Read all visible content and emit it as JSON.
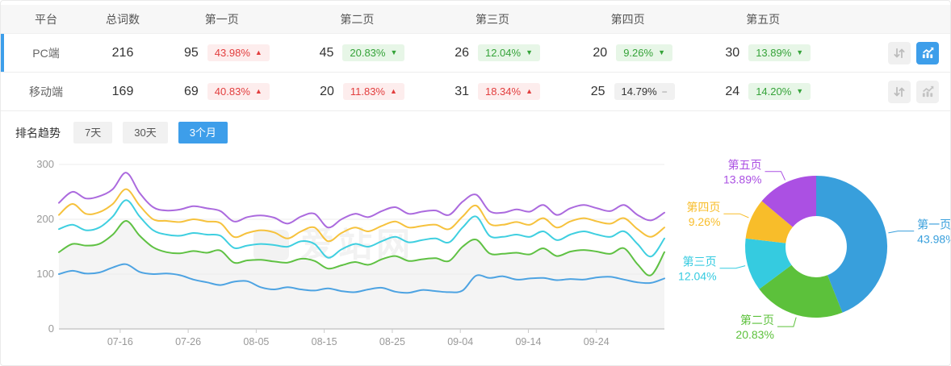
{
  "colors": {
    "accent_blue": "#3d9eea",
    "badge_red_text": "#e23e3e",
    "badge_red_bg": "#fdeded",
    "badge_green_text": "#35a339",
    "badge_green_bg": "#e7f6e7",
    "badge_gray_bg": "#f1f1f1",
    "grid_line": "#ececec",
    "axis_line": "#c9c9c9",
    "tick_text": "#999999",
    "area_fill": "#f4f4f4"
  },
  "table": {
    "headers": [
      "平台",
      "总词数",
      "第一页",
      "第二页",
      "第三页",
      "第四页",
      "第五页"
    ],
    "rows": [
      {
        "platform": "PC端",
        "total": "216",
        "selected": true,
        "pages": [
          {
            "count": "95",
            "pct": "43.98%",
            "dir": "up",
            "tone": "red"
          },
          {
            "count": "45",
            "pct": "20.83%",
            "dir": "down",
            "tone": "green"
          },
          {
            "count": "26",
            "pct": "12.04%",
            "dir": "down",
            "tone": "green"
          },
          {
            "count": "20",
            "pct": "9.26%",
            "dir": "down",
            "tone": "green"
          },
          {
            "count": "30",
            "pct": "13.89%",
            "dir": "down",
            "tone": "green"
          }
        ],
        "sort_active": false,
        "chart_active": true
      },
      {
        "platform": "移动端",
        "total": "169",
        "selected": false,
        "pages": [
          {
            "count": "69",
            "pct": "40.83%",
            "dir": "up",
            "tone": "red"
          },
          {
            "count": "20",
            "pct": "11.83%",
            "dir": "up",
            "tone": "red"
          },
          {
            "count": "31",
            "pct": "18.34%",
            "dir": "up",
            "tone": "red"
          },
          {
            "count": "25",
            "pct": "14.79%",
            "dir": "flat",
            "tone": "gray"
          },
          {
            "count": "24",
            "pct": "14.20%",
            "dir": "down",
            "tone": "green"
          }
        ],
        "sort_active": false,
        "chart_active": false
      }
    ]
  },
  "trend": {
    "title": "排名趋势",
    "tabs": [
      {
        "label": "7天",
        "active": false
      },
      {
        "label": "30天",
        "active": false
      },
      {
        "label": "3个月",
        "active": true
      }
    ]
  },
  "watermark": "爱站网",
  "chart_data": [
    {
      "type": "line",
      "title": "排名趋势 3个月",
      "xlabel": "",
      "ylabel": "",
      "ylim": [
        0,
        300
      ],
      "y_ticks": [
        0,
        100,
        200,
        300
      ],
      "x_ticks": [
        "07-16",
        "07-26",
        "08-05",
        "08-15",
        "08-25",
        "09-04",
        "09-14",
        "09-24"
      ],
      "x_tick_days": [
        9,
        19,
        29,
        39,
        49,
        59,
        69,
        79
      ],
      "total_days": 89,
      "grid": true,
      "legend_position": "none",
      "series": [
        {
          "name": "第一页",
          "color": "#4da3e2",
          "area": false,
          "values": [
            100,
            106,
            101,
            103,
            112,
            118,
            104,
            100,
            101,
            98,
            90,
            85,
            80,
            86,
            87,
            76,
            72,
            76,
            72,
            70,
            74,
            69,
            67,
            72,
            75,
            68,
            66,
            71,
            69,
            67,
            70,
            97,
            93,
            96,
            90,
            92,
            93,
            89,
            91,
            90,
            94,
            95,
            90,
            85,
            84,
            92
          ]
        },
        {
          "name": "第二页",
          "color": "#5fc143",
          "area": true,
          "values": [
            140,
            155,
            152,
            155,
            172,
            197,
            170,
            149,
            140,
            138,
            142,
            139,
            143,
            121,
            125,
            126,
            123,
            121,
            128,
            124,
            110,
            116,
            122,
            117,
            127,
            133,
            124,
            127,
            129,
            124,
            150,
            163,
            138,
            137,
            139,
            136,
            147,
            133,
            141,
            144,
            141,
            137,
            147,
            118,
            98,
            140
          ]
        },
        {
          "name": "第三页",
          "color": "#3fcfe0",
          "area": false,
          "values": [
            182,
            190,
            180,
            185,
            205,
            235,
            205,
            180,
            172,
            170,
            175,
            172,
            170,
            148,
            152,
            155,
            153,
            150,
            160,
            155,
            130,
            145,
            155,
            150,
            160,
            168,
            158,
            162,
            165,
            158,
            185,
            205,
            170,
            168,
            172,
            168,
            178,
            162,
            172,
            178,
            172,
            168,
            178,
            155,
            132,
            165
          ]
        },
        {
          "name": "第四页",
          "color": "#f6c23d",
          "area": false,
          "values": [
            208,
            228,
            210,
            213,
            228,
            255,
            225,
            200,
            197,
            195,
            200,
            196,
            193,
            168,
            175,
            180,
            176,
            165,
            178,
            185,
            160,
            175,
            185,
            178,
            188,
            196,
            185,
            188,
            190,
            182,
            205,
            225,
            192,
            190,
            195,
            190,
            202,
            185,
            196,
            202,
            196,
            192,
            202,
            182,
            168,
            185
          ]
        },
        {
          "name": "第五页",
          "color": "#ab6ade",
          "area": false,
          "values": [
            230,
            250,
            238,
            242,
            255,
            285,
            248,
            222,
            216,
            218,
            224,
            220,
            215,
            196,
            204,
            207,
            203,
            192,
            205,
            210,
            185,
            200,
            210,
            204,
            215,
            222,
            210,
            214,
            216,
            208,
            232,
            245,
            215,
            212,
            218,
            214,
            226,
            208,
            220,
            226,
            220,
            215,
            226,
            208,
            198,
            212
          ]
        }
      ]
    },
    {
      "type": "pie",
      "donut": true,
      "slices": [
        {
          "label": "第一页",
          "value": 43.98,
          "display": "43.98%",
          "color": "#389fdc"
        },
        {
          "label": "第二页",
          "value": 20.83,
          "display": "20.83%",
          "color": "#5cc13b"
        },
        {
          "label": "第三页",
          "value": 12.04,
          "display": "12.04%",
          "color": "#35cbe0"
        },
        {
          "label": "第四页",
          "value": 9.26,
          "display": "9.26%",
          "color": "#f8bd2a"
        },
        {
          "label": "第五页",
          "value": 13.89,
          "display": "13.89%",
          "color": "#ab50e3"
        }
      ]
    }
  ]
}
